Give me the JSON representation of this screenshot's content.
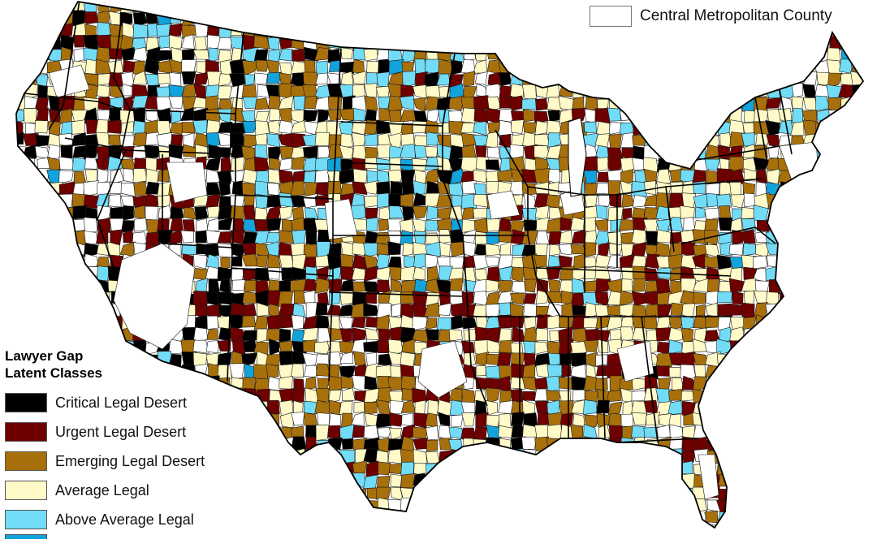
{
  "legend": {
    "title_line1": "Lawyer Gap",
    "title_line2": "Latent Classes",
    "items": [
      {
        "label": "Critical Legal Desert",
        "color": "#000000"
      },
      {
        "label": "Urgent Legal Desert",
        "color": "#6e0000"
      },
      {
        "label": "Emerging Legal Desert",
        "color": "#a8700b"
      },
      {
        "label": "Average Legal",
        "color": "#fffac8"
      },
      {
        "label": "Above Average Legal",
        "color": "#72dcf6"
      },
      {
        "label": "",
        "color": "#13a3dc"
      }
    ]
  },
  "top_legend": {
    "label": "Central Metropolitan County",
    "color": "#ffffff"
  },
  "colors": {
    "background": "#ffffff",
    "county_border": "#1a1a1a",
    "state_border": "#000000"
  }
}
